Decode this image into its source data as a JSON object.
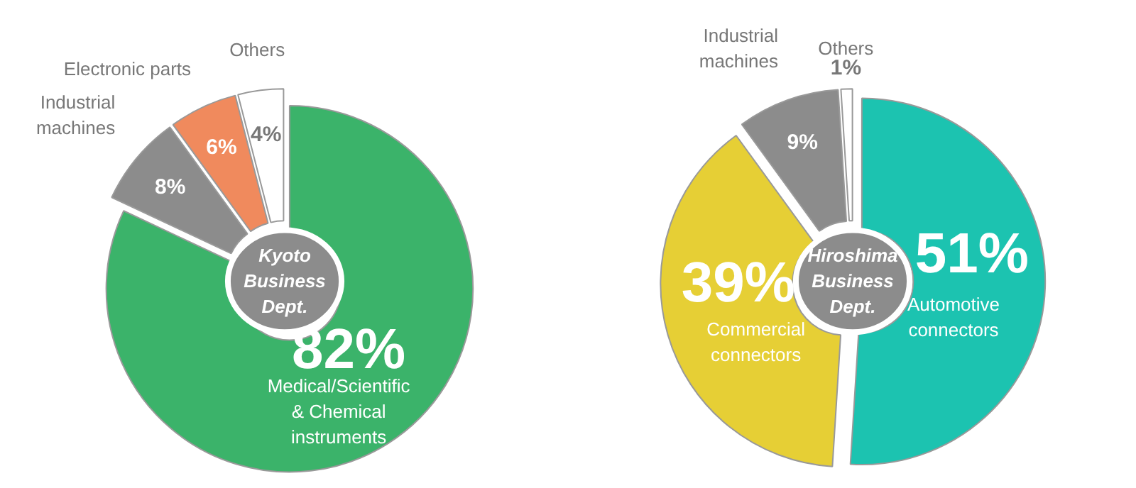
{
  "chart_data": [
    {
      "type": "donut",
      "title": "Kyoto Business Dept.",
      "categories": [
        "Medical/Scientific & Chemical instruments",
        "Industrial machines",
        "Electronic parts",
        "Others"
      ],
      "values": [
        82,
        8,
        6,
        4
      ],
      "colors": [
        "#3bb36a",
        "#8c8c8c",
        "#f08a5d",
        "#ffffff"
      ],
      "value_labels": [
        "82%",
        "8%",
        "6%",
        "4%"
      ]
    },
    {
      "type": "donut",
      "title": "Hiroshima Business Dept.",
      "categories": [
        "Automotive connectors",
        "Commercial connectors",
        "Industrial machines",
        "Others"
      ],
      "values": [
        51,
        39,
        9,
        1
      ],
      "colors": [
        "#1cc3b0",
        "#e6cf35",
        "#8c8c8c",
        "#ffffff"
      ],
      "value_labels": [
        "51%",
        "39%",
        "9%",
        "1%"
      ]
    }
  ]
}
